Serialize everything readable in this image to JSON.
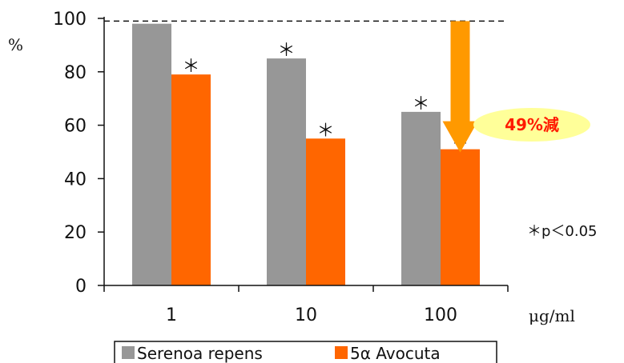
{
  "chart_data": {
    "type": "bar",
    "categories": [
      "1",
      "10",
      "100"
    ],
    "series": [
      {
        "name": "Serenoa repens",
        "values": [
          98,
          85,
          65
        ],
        "color": "#979797",
        "significant": [
          false,
          true,
          true
        ]
      },
      {
        "name": "5α Avocuta",
        "values": [
          79,
          55,
          51
        ],
        "color": "#ff6600",
        "significant": [
          true,
          true,
          true
        ]
      }
    ],
    "ylim": [
      0,
      100
    ],
    "yticks": [
      "0",
      "20",
      "40",
      "60",
      "80",
      "100"
    ],
    "ylabel": "%",
    "xunit": "μg/ml",
    "reference_line": 99,
    "significance_marker": "＊",
    "significance_note": "＊p＜0.05",
    "annotation": {
      "text": "49%減",
      "arrow_color": "#ff9900",
      "bubble_color": "#ffff99"
    },
    "grid": false,
    "legend_position": "bottom"
  }
}
